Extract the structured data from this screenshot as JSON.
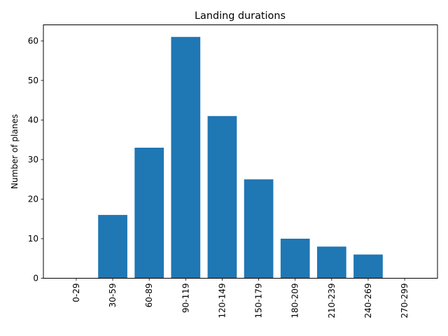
{
  "chart_data": {
    "type": "bar",
    "title": "Landing durations",
    "xlabel": "",
    "ylabel": "Number of planes",
    "categories": [
      "0-29",
      "30-59",
      "60-89",
      "90-119",
      "120-149",
      "150-179",
      "180-209",
      "210-239",
      "240-269",
      "270-299"
    ],
    "values": [
      0,
      16,
      33,
      61,
      41,
      25,
      10,
      8,
      6,
      0
    ],
    "ylim": [
      0,
      64.05
    ],
    "yticks": [
      0,
      10,
      20,
      30,
      40,
      50,
      60
    ],
    "grid": false,
    "bar_color": "#1f77b4"
  }
}
